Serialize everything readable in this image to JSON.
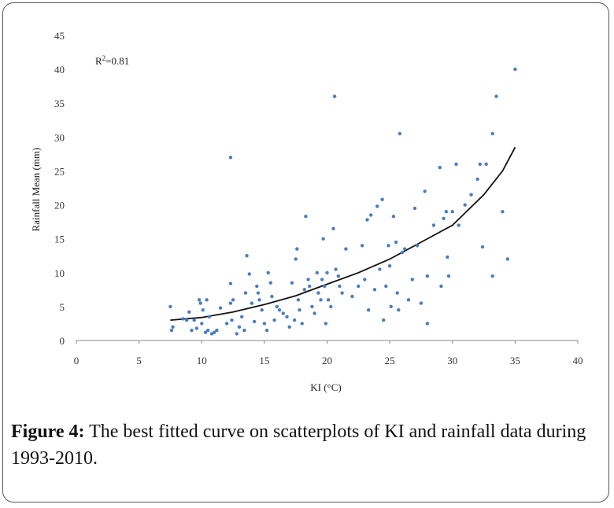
{
  "chart_data": {
    "type": "scatter",
    "xlabel": "KI (°C)",
    "ylabel": "Rainfall Mean (mm)",
    "xlim": [
      0,
      40
    ],
    "ylim": [
      0,
      45
    ],
    "x_ticks": [
      0,
      5,
      10,
      15,
      20,
      25,
      30,
      35,
      40
    ],
    "y_ticks": [
      0,
      5,
      10,
      15,
      20,
      25,
      30,
      35,
      40,
      45
    ],
    "grid": false,
    "annotation": "R²=0.81",
    "point_color": "#4a7dbf",
    "curve_color": "#111111",
    "points": [
      [
        7.5,
        5.0
      ],
      [
        7.6,
        1.5
      ],
      [
        7.7,
        2.0
      ],
      [
        8.5,
        3.2
      ],
      [
        8.8,
        3.0
      ],
      [
        9.0,
        4.2
      ],
      [
        9.2,
        1.5
      ],
      [
        9.4,
        3.0
      ],
      [
        9.6,
        1.8
      ],
      [
        9.8,
        6.0
      ],
      [
        9.9,
        5.5
      ],
      [
        10.0,
        2.5
      ],
      [
        10.1,
        4.5
      ],
      [
        10.3,
        1.2
      ],
      [
        10.4,
        6.0
      ],
      [
        10.5,
        1.5
      ],
      [
        10.6,
        3.5
      ],
      [
        10.8,
        1.0
      ],
      [
        11.0,
        1.2
      ],
      [
        11.2,
        1.5
      ],
      [
        11.5,
        4.8
      ],
      [
        12.0,
        2.5
      ],
      [
        12.3,
        27.0
      ],
      [
        12.3,
        8.4
      ],
      [
        12.3,
        5.5
      ],
      [
        12.4,
        3.0
      ],
      [
        12.5,
        6.0
      ],
      [
        12.8,
        1.0
      ],
      [
        13.0,
        2.0
      ],
      [
        13.2,
        3.5
      ],
      [
        13.4,
        1.5
      ],
      [
        13.5,
        7.0
      ],
      [
        13.6,
        12.5
      ],
      [
        13.8,
        9.8
      ],
      [
        14.0,
        5.5
      ],
      [
        14.2,
        2.8
      ],
      [
        14.4,
        8.0
      ],
      [
        14.5,
        7.0
      ],
      [
        14.6,
        6.0
      ],
      [
        14.8,
        4.5
      ],
      [
        15.0,
        2.5
      ],
      [
        15.2,
        1.5
      ],
      [
        15.3,
        10.0
      ],
      [
        15.5,
        8.5
      ],
      [
        15.6,
        6.5
      ],
      [
        15.8,
        3.0
      ],
      [
        16.0,
        5.0
      ],
      [
        16.2,
        4.5
      ],
      [
        16.5,
        4.0
      ],
      [
        16.8,
        3.5
      ],
      [
        17.0,
        2.0
      ],
      [
        17.2,
        8.5
      ],
      [
        17.4,
        3.0
      ],
      [
        17.5,
        12.0
      ],
      [
        17.6,
        13.5
      ],
      [
        17.7,
        6.0
      ],
      [
        17.8,
        4.5
      ],
      [
        18.0,
        2.5
      ],
      [
        18.2,
        7.5
      ],
      [
        18.3,
        18.3
      ],
      [
        18.5,
        9.0
      ],
      [
        18.6,
        8.0
      ],
      [
        18.8,
        5.0
      ],
      [
        19.0,
        4.0
      ],
      [
        19.2,
        10.0
      ],
      [
        19.3,
        7.0
      ],
      [
        19.5,
        6.0
      ],
      [
        19.6,
        9.0
      ],
      [
        19.7,
        15.0
      ],
      [
        19.8,
        8.0
      ],
      [
        19.9,
        2.5
      ],
      [
        20.0,
        10.0
      ],
      [
        20.1,
        6.0
      ],
      [
        20.3,
        5.0
      ],
      [
        20.5,
        16.5
      ],
      [
        20.6,
        36.0
      ],
      [
        20.7,
        10.5
      ],
      [
        20.9,
        9.5
      ],
      [
        21.0,
        8.0
      ],
      [
        21.2,
        7.0
      ],
      [
        21.5,
        13.5
      ],
      [
        22.0,
        6.5
      ],
      [
        22.5,
        8.0
      ],
      [
        22.8,
        14.0
      ],
      [
        23.0,
        9.0
      ],
      [
        23.2,
        17.8
      ],
      [
        23.3,
        4.5
      ],
      [
        23.5,
        18.5
      ],
      [
        23.8,
        7.5
      ],
      [
        24.0,
        19.8
      ],
      [
        24.2,
        10.5
      ],
      [
        24.4,
        20.8
      ],
      [
        24.5,
        3.0
      ],
      [
        24.7,
        8.0
      ],
      [
        24.9,
        14.0
      ],
      [
        25.0,
        11.0
      ],
      [
        25.1,
        5.0
      ],
      [
        25.3,
        18.3
      ],
      [
        25.5,
        14.5
      ],
      [
        25.6,
        7.0
      ],
      [
        25.7,
        4.5
      ],
      [
        25.8,
        30.5
      ],
      [
        26.0,
        13.0
      ],
      [
        26.2,
        13.5
      ],
      [
        26.5,
        6.0
      ],
      [
        26.8,
        9.0
      ],
      [
        27.0,
        19.5
      ],
      [
        27.2,
        14.0
      ],
      [
        27.5,
        5.5
      ],
      [
        27.8,
        22.0
      ],
      [
        28.0,
        9.5
      ],
      [
        28.0,
        2.5
      ],
      [
        28.5,
        17.0
      ],
      [
        29.0,
        25.5
      ],
      [
        29.1,
        8.0
      ],
      [
        29.3,
        18.0
      ],
      [
        29.5,
        19.0
      ],
      [
        29.6,
        12.3
      ],
      [
        29.7,
        9.5
      ],
      [
        30.0,
        19.0
      ],
      [
        30.3,
        26.0
      ],
      [
        30.5,
        17.0
      ],
      [
        31.0,
        20.0
      ],
      [
        31.5,
        21.5
      ],
      [
        32.0,
        23.8
      ],
      [
        32.2,
        26.0
      ],
      [
        32.4,
        13.8
      ],
      [
        32.7,
        26.0
      ],
      [
        33.2,
        9.5
      ],
      [
        33.2,
        30.5
      ],
      [
        33.5,
        36.0
      ],
      [
        34.0,
        19.0
      ],
      [
        34.4,
        12.0
      ],
      [
        35.0,
        40.0
      ]
    ],
    "curve": [
      [
        7.5,
        3.0
      ],
      [
        10,
        3.4
      ],
      [
        12.5,
        4.2
      ],
      [
        15,
        5.3
      ],
      [
        17.5,
        6.6
      ],
      [
        20,
        8.3
      ],
      [
        22.5,
        10.0
      ],
      [
        25,
        12.0
      ],
      [
        27.5,
        14.5
      ],
      [
        30,
        17.0
      ],
      [
        32.5,
        21.5
      ],
      [
        34,
        25.0
      ],
      [
        35,
        28.5
      ]
    ]
  },
  "caption": {
    "label": "Figure 4:",
    "text": " The best fitted curve on scatterplots of KI and rainfall data during 1993-2010."
  }
}
